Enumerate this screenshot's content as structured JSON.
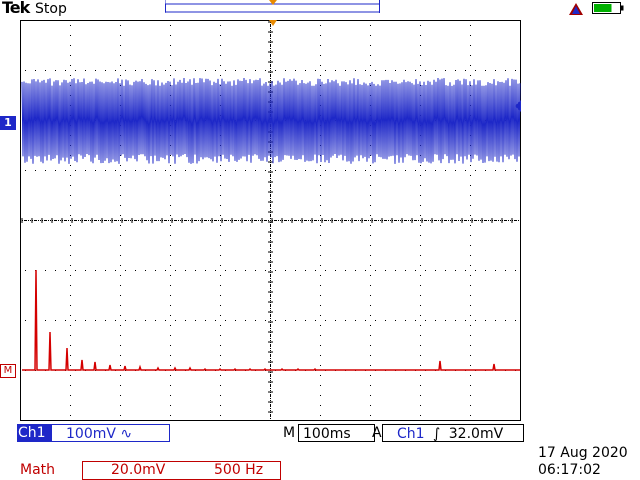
{
  "header": {
    "brand": "Tek",
    "acquisition_state": "Stop",
    "icons": {
      "trigger_position": "triangle-marker-icon",
      "warning": "warning-triangle-icon",
      "battery": "battery-icon"
    },
    "battery_level": 0.7
  },
  "channels": {
    "ch1_marker": "1",
    "math_marker": "M",
    "colors": {
      "ch1": "#1e28c8",
      "math": "#d40000",
      "grid": "#000000"
    }
  },
  "status": {
    "ch1_label": "Ch1",
    "ch1_scale": "100mV",
    "ch1_coupling_icon": "ac-coupling-icon",
    "ch1_coupling_symbol": "∿",
    "timebase_label": "M",
    "timebase_value": "100ms",
    "trigger_label": "A",
    "trigger_source": "Ch1",
    "trigger_slope_icon": "rising-edge-icon",
    "trigger_slope_symbol": "∫",
    "trigger_level": "32.0mV",
    "math_label": "Math",
    "math_scale": "20.0mV",
    "math_span": "500 Hz",
    "date": "17 Aug 2020",
    "time": "06:17:02"
  }
}
